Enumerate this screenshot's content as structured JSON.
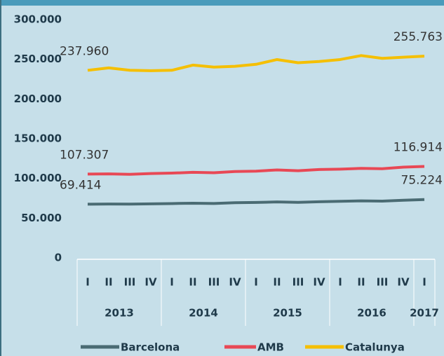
{
  "chart_data": {
    "type": "line",
    "categories": [
      "I",
      "II",
      "III",
      "IV",
      "I",
      "II",
      "III",
      "IV",
      "I",
      "II",
      "III",
      "IV",
      "I",
      "II",
      "III",
      "IV",
      "I"
    ],
    "groups": [
      {
        "label": "2013",
        "span": 4
      },
      {
        "label": "2014",
        "span": 4
      },
      {
        "label": "2015",
        "span": 4
      },
      {
        "label": "2016",
        "span": 4
      },
      {
        "label": "2017",
        "span": 1
      }
    ],
    "ylim": [
      0,
      300000
    ],
    "yticks": [
      0,
      {
        "value": 50000,
        "label": "50.000"
      },
      {
        "value": 100000,
        "label": "100.000"
      },
      {
        "value": 150000,
        "label": "150.000"
      },
      {
        "value": 200000,
        "label": "200.000"
      },
      {
        "value": 250000,
        "label": "250.000"
      },
      {
        "value": 300000,
        "label": "300.000"
      }
    ],
    "grid": false,
    "legend": "bottom",
    "series": [
      {
        "name": "Barcelona",
        "color": "#4a6b73",
        "values": [
          69414,
          69600,
          69500,
          69800,
          70200,
          70600,
          70300,
          71200,
          71600,
          72200,
          71700,
          72500,
          73000,
          73600,
          73200,
          74300,
          75224
        ],
        "value_labels": [
          "69.414",
          null,
          null,
          null,
          null,
          null,
          null,
          null,
          null,
          null,
          null,
          null,
          null,
          null,
          null,
          null,
          "75.224"
        ]
      },
      {
        "name": "AMB",
        "color": "#e84855",
        "values": [
          107307,
          107500,
          107000,
          108000,
          108500,
          109500,
          109000,
          110500,
          111000,
          112500,
          111500,
          113000,
          113500,
          114500,
          114000,
          116000,
          116914
        ],
        "value_labels": [
          "107.307",
          null,
          null,
          null,
          null,
          null,
          null,
          null,
          null,
          null,
          null,
          null,
          null,
          null,
          null,
          null,
          "116.914"
        ]
      },
      {
        "name": "Catalunya",
        "color": "#f5bf00",
        "values": [
          237960,
          241000,
          238000,
          237500,
          238000,
          244500,
          242000,
          243000,
          245500,
          251500,
          247500,
          249000,
          251500,
          256500,
          253000,
          254500,
          255763
        ],
        "value_labels": [
          "237.960",
          null,
          null,
          null,
          null,
          null,
          null,
          null,
          null,
          null,
          null,
          null,
          null,
          null,
          null,
          null,
          "255.763"
        ]
      }
    ]
  }
}
